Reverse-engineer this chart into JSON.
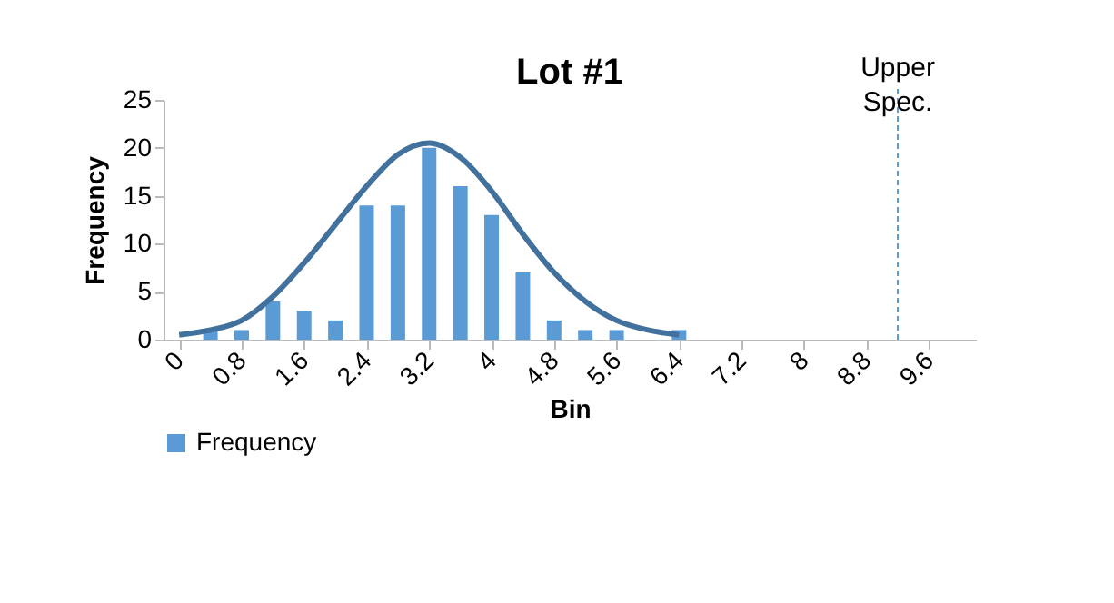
{
  "chart_data": {
    "type": "bar",
    "title": "Lot #1",
    "xlabel": "Bin",
    "ylabel": "Frequency",
    "x": [
      0,
      0.4,
      0.8,
      1.2,
      1.6,
      2.0,
      2.4,
      2.8,
      3.2,
      3.6,
      4.0,
      4.4,
      4.8,
      5.2,
      5.6,
      6.0,
      6.4,
      6.8,
      7.2,
      7.6,
      8.0,
      8.4,
      8.8,
      9.2,
      9.6,
      10.0
    ],
    "series": [
      {
        "name": "Frequency",
        "color": "#5b9bd5",
        "values": [
          0,
          1,
          1,
          4,
          3,
          2,
          14,
          14,
          20,
          16,
          13,
          7,
          2,
          1,
          1,
          0,
          1,
          0,
          0,
          0,
          0,
          0,
          0,
          0,
          0,
          0
        ]
      },
      {
        "type": "line",
        "color": "#41719c",
        "x": [
          0,
          0.4,
          0.8,
          1.2,
          1.6,
          2.0,
          2.4,
          2.8,
          3.2,
          3.6,
          4.0,
          4.4,
          4.8,
          5.2,
          5.6,
          6.0,
          6.4
        ],
        "values": [
          0.5,
          1,
          2,
          4.5,
          8,
          12,
          16,
          19.3,
          20.5,
          19,
          15.5,
          11,
          7,
          4,
          2,
          1,
          0.5
        ]
      }
    ],
    "xlim": [
      -0.2,
      10.2
    ],
    "xticks": [
      0,
      0.8,
      1.6,
      2.4,
      3.2,
      4,
      4.8,
      5.6,
      6.4,
      7.2,
      8,
      8.8,
      9.6
    ],
    "ylim": [
      0,
      25
    ],
    "yticks": [
      0,
      5,
      10,
      15,
      20,
      25
    ],
    "ref_lines": [
      {
        "axis": "x",
        "value": 9.2,
        "label": "Upper Spec.",
        "color": "#5b9bd5",
        "line_style": "dashed"
      }
    ],
    "grid": false,
    "legend": "bottom",
    "marker": "none"
  }
}
